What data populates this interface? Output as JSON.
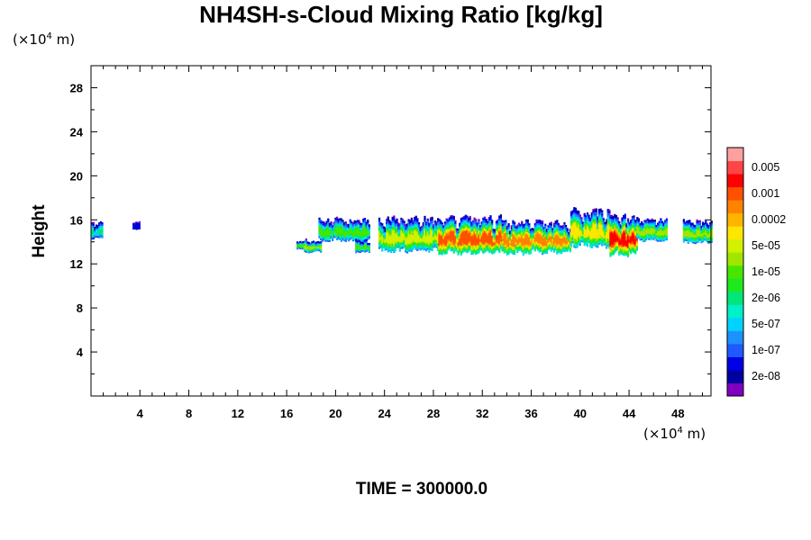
{
  "chart_data": {
    "type": "heatmap",
    "title": "NH4SH-s-Cloud Mixing Ratio [kg/kg]",
    "ylabel": "Height",
    "xlabel": "",
    "x_scale_label": {
      "base": "(×10",
      "exp": "4",
      "unit": " m)"
    },
    "y_scale_label": {
      "base": "(×10",
      "exp": "4",
      "unit": " m)"
    },
    "xlim": [
      0,
      50.7
    ],
    "ylim": [
      0,
      30
    ],
    "x_ticks": [
      4,
      8,
      12,
      16,
      20,
      24,
      28,
      32,
      36,
      40,
      44,
      48
    ],
    "x_tick_labels": [
      "4",
      "8",
      "12",
      "16",
      "20",
      "24",
      "28",
      "32",
      "36",
      "40",
      "44",
      "48"
    ],
    "y_ticks": [
      4,
      8,
      12,
      16,
      20,
      24,
      28
    ],
    "y_tick_labels": [
      "4",
      "8",
      "12",
      "16",
      "20",
      "24",
      "28"
    ],
    "colorbar": {
      "colors": [
        "#7f00bf",
        "#0000a0",
        "#0000e6",
        "#1e5aff",
        "#1e90ff",
        "#00d2ff",
        "#00f0c8",
        "#00e67a",
        "#1fe81f",
        "#46e600",
        "#a0e600",
        "#d2f000",
        "#ffe600",
        "#ffb400",
        "#ff8200",
        "#ff5000",
        "#ff0000",
        "#ff4646",
        "#ffa0a0"
      ],
      "labels": [
        "2e-08",
        "1e-07",
        "5e-07",
        "2e-06",
        "1e-05",
        "5e-05",
        "0.0002",
        "0.001",
        "0.005"
      ]
    },
    "cloud_features": [
      {
        "x": [
          0.0,
          0.9
        ],
        "y": [
          14.2,
          15.8
        ],
        "peak": 7
      },
      {
        "x": [
          3.4,
          3.9
        ],
        "y": [
          15.1,
          15.8
        ],
        "peak": 2
      },
      {
        "x": [
          16.8,
          17.4
        ],
        "y": [
          13.3,
          14.0
        ],
        "peak": 9
      },
      {
        "x": [
          17.4,
          18.8
        ],
        "y": [
          13.0,
          14.2
        ],
        "peak": 10
      },
      {
        "x": [
          18.6,
          22.8
        ],
        "y": [
          14.0,
          16.2
        ],
        "peak": 9
      },
      {
        "x": [
          21.6,
          22.8
        ],
        "y": [
          13.0,
          14.2
        ],
        "peak": 9
      },
      {
        "x": [
          23.5,
          28.4
        ],
        "y": [
          13.0,
          16.3
        ],
        "peak": 11
      },
      {
        "x": [
          28.4,
          33.6
        ],
        "y": [
          12.8,
          16.4
        ],
        "peak": 15
      },
      {
        "x": [
          33.6,
          39.2
        ],
        "y": [
          12.8,
          16.0
        ],
        "peak": 14
      },
      {
        "x": [
          39.2,
          42.4
        ],
        "y": [
          13.4,
          17.1
        ],
        "peak": 12
      },
      {
        "x": [
          42.4,
          44.6
        ],
        "y": [
          12.6,
          16.6
        ],
        "peak": 16
      },
      {
        "x": [
          44.6,
          47.0
        ],
        "y": [
          14.0,
          16.2
        ],
        "peak": 10
      },
      {
        "x": [
          48.4,
          50.7
        ],
        "y": [
          13.8,
          16.0
        ],
        "peak": 10
      }
    ]
  },
  "footer": {
    "time_label": "TIME = 300000.0"
  }
}
